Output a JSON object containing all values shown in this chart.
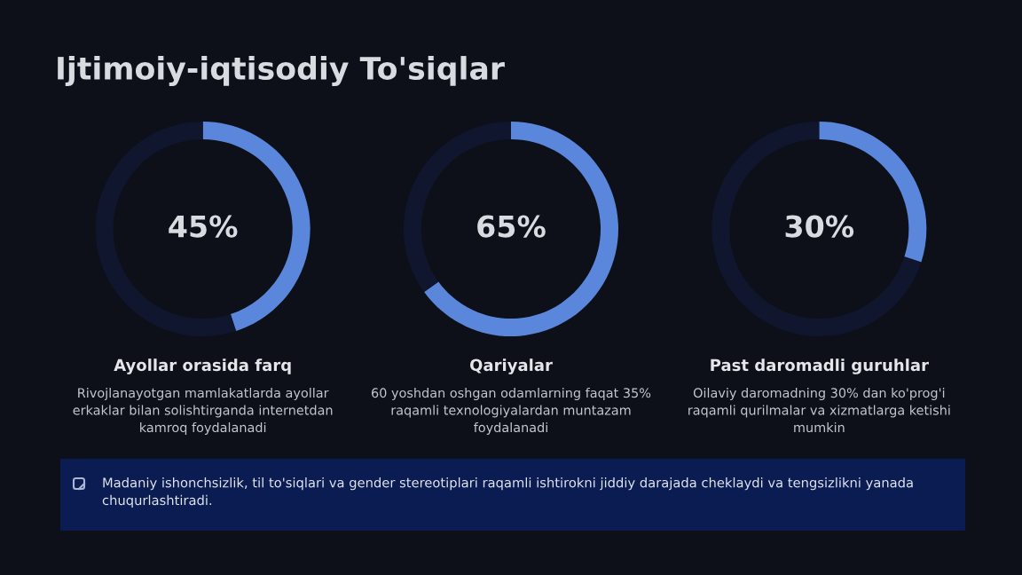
{
  "chart_data": [
    {
      "type": "other",
      "title": "Ijtimoiy-iqtisodiy To'siqlar"
    },
    {
      "type": "donut",
      "title": "Ayollar orasida farq",
      "subtitle": "Rivojlanayotgan mamlakatlarda ayollar erkaklar bilan solishtirganda internetdan kamroq foydalanadi",
      "categories": [
        null,
        null
      ],
      "values": [
        45,
        55
      ],
      "colors": [
        "#5a87dc",
        "#10162d"
      ],
      "value_labels": [
        "45%",
        null
      ]
    },
    {
      "type": "donut",
      "title": "Qariyalar",
      "subtitle": "60 yoshdan oshgan odamlarning faqat 35% raqamli texnologiyalardan muntazam foydalanadi",
      "categories": [
        null,
        null
      ],
      "values": [
        65,
        35
      ],
      "colors": [
        "#5a87dc",
        "#10162d"
      ],
      "value_labels": [
        "65%",
        null
      ]
    },
    {
      "type": "donut",
      "title": "Past daromadli guruhlar",
      "subtitle": "Oilaviy daromadning 30% dan ko'prog'i raqamli qurilmalar va xizmatlarga ketishi mumkin",
      "categories": [
        null,
        null
      ],
      "values": [
        30,
        70
      ],
      "colors": [
        "#5a87dc",
        "#10162d"
      ],
      "value_labels": [
        "30%",
        null
      ]
    },
    {
      "type": "other",
      "annotations": [
        "Madaniy ishonchsizlik, til to'siqlari va gender stereotiplari raqamli ishtirokni jiddiy darajada cheklaydi va tengsizlikni yanada chuqurlashtiradi."
      ]
    }
  ]
}
